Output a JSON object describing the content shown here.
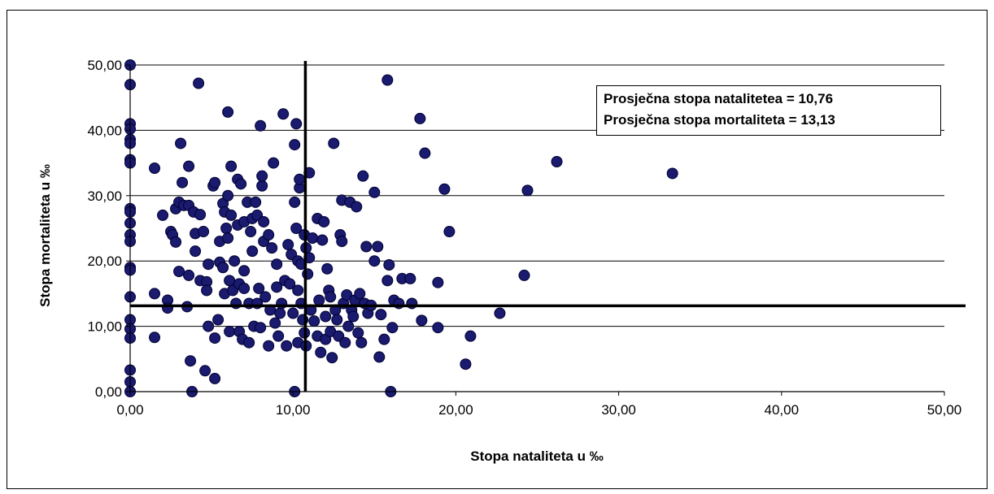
{
  "chart_data": {
    "type": "scatter",
    "xlabel": "Stopa nataliteta u ‰",
    "ylabel": "Stopa mortaliteta u ‰",
    "xlim": [
      0,
      50
    ],
    "ylim": [
      0,
      50
    ],
    "x_ticks": [
      "0,00",
      "10,00",
      "20,00",
      "30,00",
      "40,00",
      "50,00"
    ],
    "y_ticks": [
      "0,00",
      "10,00",
      "20,00",
      "30,00",
      "40,00",
      "50,00"
    ],
    "grid": "horizontal",
    "marker_color": "#1a1a6e",
    "annotations": [
      "Prosječna stopa natalitetea = 10,76",
      "Prosječna stopa mortaliteta = 13,13"
    ],
    "mean_x": 10.76,
    "mean_y": 13.13,
    "points": [
      [
        0,
        50
      ],
      [
        0,
        47
      ],
      [
        0,
        41
      ],
      [
        0,
        40.2
      ],
      [
        0,
        38.6
      ],
      [
        0,
        38
      ],
      [
        0,
        35.5
      ],
      [
        0,
        35
      ],
      [
        0,
        28
      ],
      [
        0,
        27.5
      ],
      [
        0,
        25.8
      ],
      [
        0,
        24
      ],
      [
        0,
        23
      ],
      [
        0,
        19
      ],
      [
        0,
        18.6
      ],
      [
        0,
        14.5
      ],
      [
        0,
        11
      ],
      [
        0,
        9.6
      ],
      [
        0,
        8.2
      ],
      [
        0,
        3.3
      ],
      [
        0,
        1.5
      ],
      [
        0,
        0
      ],
      [
        1.5,
        34.2
      ],
      [
        1.5,
        15
      ],
      [
        1.5,
        8.3
      ],
      [
        2,
        27
      ],
      [
        2.3,
        14
      ],
      [
        2.3,
        12.8
      ],
      [
        2.5,
        24.5
      ],
      [
        2.6,
        24
      ],
      [
        2.8,
        22.9
      ],
      [
        2.8,
        28
      ],
      [
        3,
        29
      ],
      [
        3,
        18.4
      ],
      [
        3.1,
        38
      ],
      [
        3.2,
        32
      ],
      [
        3.3,
        28.5
      ],
      [
        3.5,
        13
      ],
      [
        3.6,
        28.5
      ],
      [
        3.6,
        34.5
      ],
      [
        3.6,
        17.8
      ],
      [
        3.7,
        4.7
      ],
      [
        3.8,
        0
      ],
      [
        3.9,
        27.5
      ],
      [
        4,
        21.5
      ],
      [
        4,
        24.2
      ],
      [
        4.2,
        47.2
      ],
      [
        4.3,
        17
      ],
      [
        4.3,
        27.1
      ],
      [
        4.5,
        24.5
      ],
      [
        4.6,
        3.2
      ],
      [
        4.7,
        16.8
      ],
      [
        4.7,
        15.5
      ],
      [
        4.8,
        19.5
      ],
      [
        4.8,
        10
      ],
      [
        5.1,
        31.5
      ],
      [
        5.2,
        32
      ],
      [
        5.2,
        8.2
      ],
      [
        5.2,
        2
      ],
      [
        5.4,
        11
      ],
      [
        5.5,
        19.8
      ],
      [
        5.5,
        23
      ],
      [
        5.7,
        28.8
      ],
      [
        5.7,
        19
      ],
      [
        5.8,
        27.5
      ],
      [
        5.8,
        15
      ],
      [
        5.9,
        25
      ],
      [
        6,
        30
      ],
      [
        6,
        23.5
      ],
      [
        6,
        42.8
      ],
      [
        6.1,
        17
      ],
      [
        6.1,
        9.2
      ],
      [
        6.2,
        34.5
      ],
      [
        6.2,
        27
      ],
      [
        6.3,
        15.5
      ],
      [
        6.4,
        20
      ],
      [
        6.5,
        13.5
      ],
      [
        6.6,
        25.5
      ],
      [
        6.6,
        32.5
      ],
      [
        6.7,
        16.5
      ],
      [
        6.7,
        9.2
      ],
      [
        6.8,
        31.8
      ],
      [
        6.9,
        8
      ],
      [
        7,
        26
      ],
      [
        7,
        18.5
      ],
      [
        7,
        15.8
      ],
      [
        7.2,
        29
      ],
      [
        7.3,
        7.5
      ],
      [
        7.3,
        13.5
      ],
      [
        7.4,
        24.5
      ],
      [
        7.5,
        26.5
      ],
      [
        7.5,
        21.5
      ],
      [
        7.6,
        10
      ],
      [
        7.7,
        29
      ],
      [
        7.8,
        27
      ],
      [
        7.8,
        13.5
      ],
      [
        7.9,
        15.8
      ],
      [
        8,
        40.7
      ],
      [
        8,
        9.8
      ],
      [
        8.1,
        31.5
      ],
      [
        8.1,
        33
      ],
      [
        8.2,
        23
      ],
      [
        8.2,
        26
      ],
      [
        8.3,
        14.5
      ],
      [
        8.5,
        24
      ],
      [
        8.5,
        7
      ],
      [
        8.6,
        12.5
      ],
      [
        8.7,
        22
      ],
      [
        8.8,
        35
      ],
      [
        8.9,
        10.5
      ],
      [
        9,
        19.5
      ],
      [
        9,
        16
      ],
      [
        9.1,
        8.5
      ],
      [
        9.2,
        12
      ],
      [
        9.3,
        13.5
      ],
      [
        9.4,
        42.5
      ],
      [
        9.5,
        17
      ],
      [
        9.6,
        7
      ],
      [
        9.7,
        22.5
      ],
      [
        9.8,
        16.5
      ],
      [
        9.9,
        21
      ],
      [
        10,
        12
      ],
      [
        10.1,
        37.8
      ],
      [
        10.1,
        29
      ],
      [
        10.1,
        0
      ],
      [
        10.2,
        41
      ],
      [
        10.2,
        25
      ],
      [
        10.3,
        20
      ],
      [
        10.3,
        15.5
      ],
      [
        10.3,
        7.5
      ],
      [
        10.4,
        31.2
      ],
      [
        10.4,
        32.5
      ],
      [
        10.5,
        19.5
      ],
      [
        10.5,
        13.5
      ],
      [
        10.6,
        11
      ],
      [
        10.7,
        24
      ],
      [
        10.7,
        9
      ],
      [
        10.8,
        22
      ],
      [
        10.8,
        7
      ],
      [
        10.9,
        18
      ],
      [
        11,
        33.5
      ],
      [
        11,
        20.5
      ],
      [
        11.1,
        12.5
      ],
      [
        11.2,
        23.5
      ],
      [
        11.3,
        10.8
      ],
      [
        11.5,
        26.5
      ],
      [
        11.5,
        8.5
      ],
      [
        11.6,
        14
      ],
      [
        11.7,
        6
      ],
      [
        11.8,
        23.2
      ],
      [
        11.9,
        26
      ],
      [
        12,
        11.5
      ],
      [
        12,
        8
      ],
      [
        12.1,
        18.8
      ],
      [
        12.2,
        15.5
      ],
      [
        12.3,
        14.5
      ],
      [
        12.3,
        9.2
      ],
      [
        12.4,
        5.2
      ],
      [
        12.5,
        38
      ],
      [
        12.6,
        12.5
      ],
      [
        12.7,
        11
      ],
      [
        12.8,
        8.5
      ],
      [
        12.9,
        24
      ],
      [
        13,
        29.3
      ],
      [
        13,
        23
      ],
      [
        13.1,
        13.5
      ],
      [
        13.2,
        7.5
      ],
      [
        13.3,
        14.8
      ],
      [
        13.4,
        10
      ],
      [
        13.5,
        29
      ],
      [
        13.6,
        12.5
      ],
      [
        13.7,
        11.5
      ],
      [
        13.8,
        14
      ],
      [
        13.9,
        28.3
      ],
      [
        14,
        9
      ],
      [
        14.1,
        15
      ],
      [
        14.2,
        7.5
      ],
      [
        14.3,
        33
      ],
      [
        14.4,
        13.5
      ],
      [
        14.5,
        22.2
      ],
      [
        14.6,
        12
      ],
      [
        14.8,
        13.2
      ],
      [
        15,
        30.5
      ],
      [
        15,
        20
      ],
      [
        15.2,
        22.2
      ],
      [
        15.3,
        5.3
      ],
      [
        15.4,
        11.8
      ],
      [
        15.6,
        8
      ],
      [
        15.8,
        17
      ],
      [
        15.8,
        47.7
      ],
      [
        15.9,
        19.4
      ],
      [
        16,
        0
      ],
      [
        16.1,
        9.8
      ],
      [
        16.2,
        14
      ],
      [
        16.5,
        13.5
      ],
      [
        16.7,
        17.3
      ],
      [
        17.2,
        17.3
      ],
      [
        17.3,
        13.5
      ],
      [
        17.8,
        41.8
      ],
      [
        17.9,
        10.9
      ],
      [
        18.1,
        36.5
      ],
      [
        18.9,
        16.7
      ],
      [
        18.9,
        9.8
      ],
      [
        19.3,
        31
      ],
      [
        19.6,
        24.5
      ],
      [
        20.6,
        4.2
      ],
      [
        20.9,
        8.5
      ],
      [
        22.7,
        12
      ],
      [
        24.2,
        17.8
      ],
      [
        24.4,
        30.8
      ],
      [
        26.2,
        35.2
      ],
      [
        33.3,
        33.4
      ]
    ]
  }
}
